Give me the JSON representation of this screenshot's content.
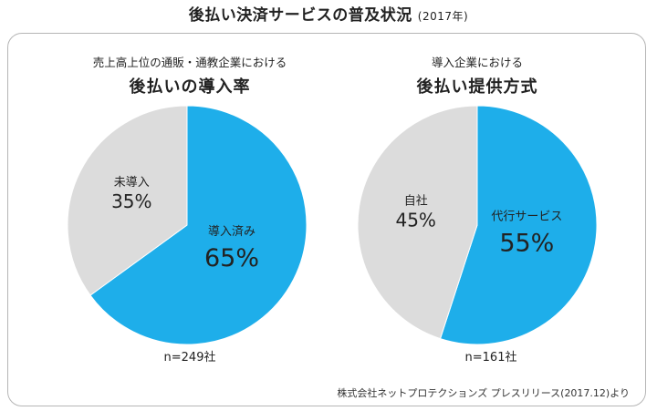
{
  "title": "後払い決済サービスの普及状況",
  "title_year": "(2017年)",
  "source": "株式会社ネットプロテクションズ プレスリリース(2017.12)より",
  "colors": {
    "blue": "#1eaeea",
    "gray": "#dcdcdc"
  },
  "chart_data": [
    {
      "type": "pie",
      "subtitle": "売上高上位の通販・通教企業における",
      "title": "後払いの導入率",
      "slices": [
        {
          "label": "導入済み",
          "value": 65,
          "display": "65%",
          "color": "#1eaeea"
        },
        {
          "label": "未導入",
          "value": 35,
          "display": "35%",
          "color": "#dcdcdc"
        }
      ],
      "n": "n=249社"
    },
    {
      "type": "pie",
      "subtitle": "導入企業における",
      "title": "後払い提供方式",
      "slices": [
        {
          "label": "代行サービス",
          "value": 55,
          "display": "55%",
          "color": "#1eaeea"
        },
        {
          "label": "自社",
          "value": 45,
          "display": "45%",
          "color": "#dcdcdc"
        }
      ],
      "n": "n=161社"
    }
  ]
}
